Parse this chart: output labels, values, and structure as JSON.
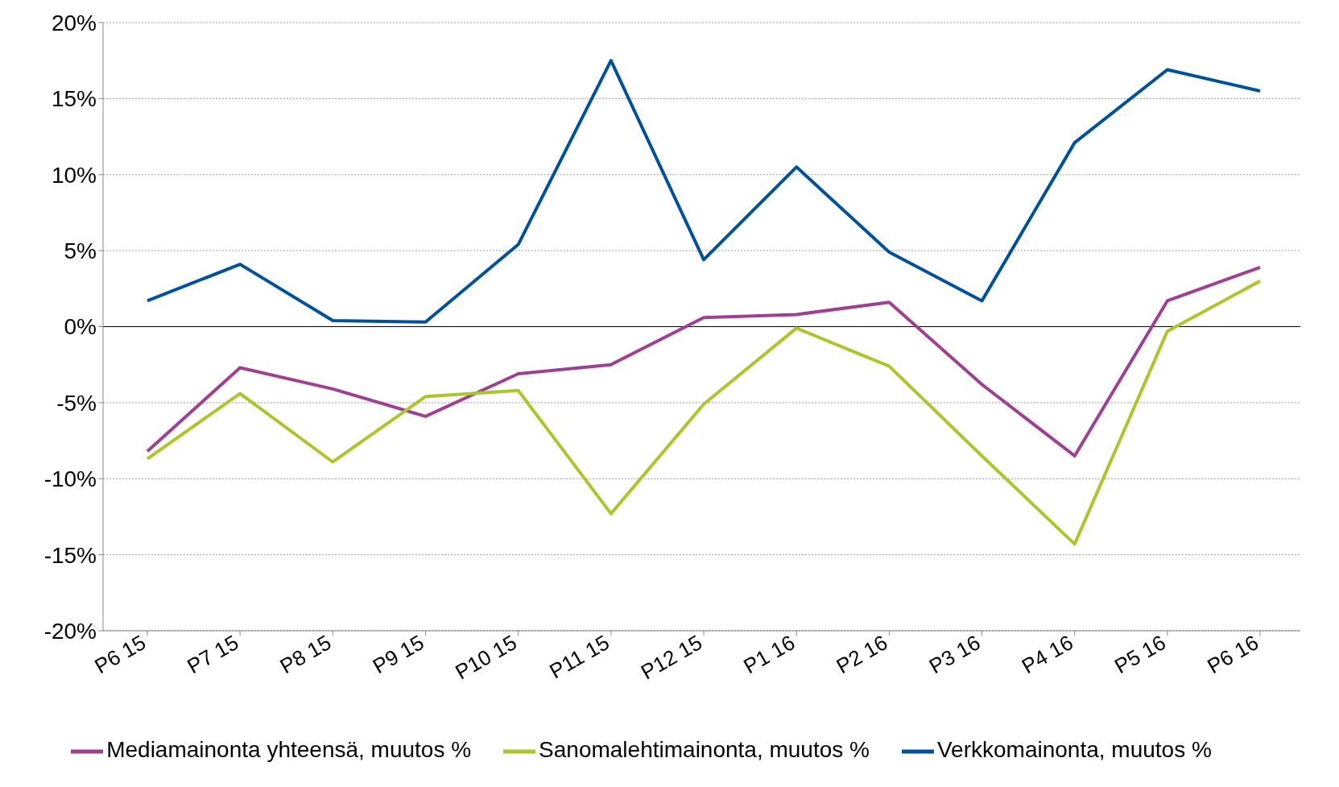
{
  "chart_data": {
    "type": "line",
    "categories": [
      "P6 15",
      "P7 15",
      "P8 15",
      "P9 15",
      "P10 15",
      "P11 15",
      "P12 15",
      "P1 16",
      "P2 16",
      "P3 16",
      "P4 16",
      "P5 16",
      "P6 16"
    ],
    "series": [
      {
        "name": "Mediamainonta yhteensä, muutos %",
        "color": "#9e3f92",
        "values": [
          -8.2,
          -2.7,
          -4.1,
          -5.9,
          -3.1,
          -2.5,
          0.6,
          0.8,
          1.6,
          -3.8,
          -8.5,
          1.7,
          3.9
        ]
      },
      {
        "name": "Sanomalehtimainonta, muutos %",
        "color": "#a9c62b",
        "values": [
          -8.7,
          -4.4,
          -8.9,
          -4.6,
          -4.2,
          -12.3,
          -5.1,
          -0.1,
          -2.6,
          -8.5,
          -14.3,
          -0.3,
          3.0
        ]
      },
      {
        "name": "Verkkomainonta, muutos %",
        "color": "#00519c",
        "values": [
          1.7,
          4.1,
          0.4,
          0.3,
          5.4,
          17.5,
          4.4,
          10.5,
          4.9,
          1.7,
          12.1,
          16.9,
          15.5
        ]
      }
    ],
    "ylim": [
      -20,
      20
    ],
    "yticks": [
      {
        "value": -20,
        "label": "-20%"
      },
      {
        "value": -15,
        "label": "-15%"
      },
      {
        "value": -10,
        "label": "-10%"
      },
      {
        "value": -5,
        "label": "-5%"
      },
      {
        "value": 0,
        "label": "0%"
      },
      {
        "value": 5,
        "label": "5%"
      },
      {
        "value": 10,
        "label": "10%"
      },
      {
        "value": 15,
        "label": "15%"
      },
      {
        "value": 20,
        "label": "20%"
      }
    ],
    "grid": "y",
    "legend": "bottom",
    "marker": "none",
    "line_style": "solid",
    "ref_lines": [
      {
        "axis": "y",
        "value": 0,
        "color": "#000000"
      }
    ]
  }
}
